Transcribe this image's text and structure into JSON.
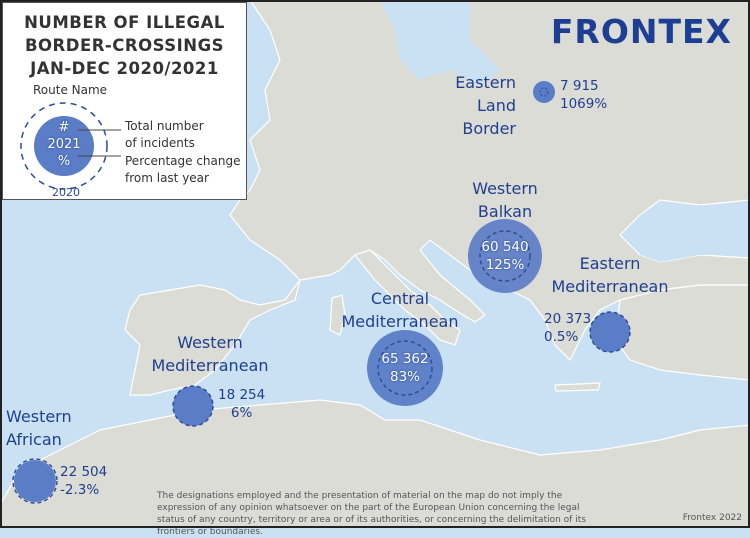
{
  "legend": {
    "title_lines": [
      "NUMBER OF ILLEGAL",
      "BORDER-CROSSINGS",
      "JAN-DEC 2020/2021"
    ],
    "route_name": "Route Name",
    "circle_symbol": "#",
    "circle_year": "2021",
    "circle_percent": "%",
    "outer_year": "2020",
    "total_label_lines": [
      "Total number",
      "of incidents"
    ],
    "change_label_lines": [
      "Percentage change",
      "from last year"
    ]
  },
  "logo": "FRONTEX",
  "colors": {
    "sea": "#c9e1f2",
    "land": "#dcdcd6",
    "circle_fill": "#5b7cc6",
    "circle_outline": "#2a4a9a",
    "label_text": "#1f3f8f"
  },
  "routes": [
    {
      "name_lines": [
        "Eastern",
        "Land Border"
      ],
      "total": "7 915",
      "change": "1069%"
    },
    {
      "name_lines": [
        "Western",
        "Balkan"
      ],
      "total": "60 540",
      "change": "125%"
    },
    {
      "name_lines": [
        "Eastern",
        "Mediterranean"
      ],
      "total": "20 373",
      "change": "0.5%"
    },
    {
      "name_lines": [
        "Central",
        "Mediterranean"
      ],
      "total": "65 362",
      "change": "83%"
    },
    {
      "name_lines": [
        "Western",
        "Mediterranean"
      ],
      "total": "18 254",
      "change": "6%"
    },
    {
      "name_lines": [
        "Western",
        "African"
      ],
      "total": "22 504",
      "change": "-2.3%"
    }
  ],
  "disclaimer": "The designations employed and the presentation of material on the map do not imply the expression of any opinion whatsoever on the part of the European Union concerning the legal status of any country, territory or area or of its authorities, or concerning the delimitation of its frontiers or boundaries.",
  "credit": "Frontex 2022"
}
